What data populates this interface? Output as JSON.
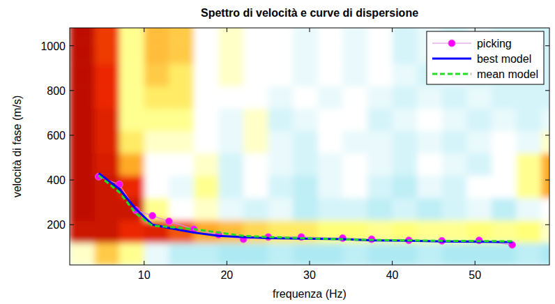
{
  "chart_data": {
    "type": "line",
    "title": "Spettro di velocità e curve di dispersione",
    "x_label": "frequenza (Hz)",
    "y_label": "velocità di fase (m/s)",
    "xlim": [
      1,
      59
    ],
    "ylim": [
      20,
      1080
    ],
    "xticks": [
      10,
      20,
      30,
      40,
      50
    ],
    "yticks": [
      200,
      400,
      600,
      800,
      1000
    ],
    "legend": "upper right",
    "x": [
      4.5,
      7,
      9,
      11,
      13,
      16,
      19,
      22,
      25,
      29,
      34,
      37.5,
      42,
      46,
      50.5,
      54.5
    ],
    "series": [
      {
        "name": "picking",
        "color": "#ff00ff",
        "marker": "circle",
        "line_style": "solid",
        "values": [
          415,
          380,
          265,
          240,
          215,
          180,
          155,
          135,
          145,
          145,
          140,
          135,
          130,
          128,
          130,
          110
        ]
      },
      {
        "name": "best model",
        "color": "#0000ff",
        "marker": "none",
        "line_style": "solid",
        "values": [
          430,
          360,
          270,
          200,
          185,
          165,
          150,
          145,
          140,
          138,
          135,
          130,
          128,
          125,
          124,
          122
        ]
      },
      {
        "name": "mean model",
        "color": "#22dd22",
        "marker": "none",
        "line_style": "dashed",
        "values": [
          420,
          345,
          250,
          195,
          190,
          180,
          165,
          150,
          145,
          140,
          135,
          132,
          130,
          128,
          127,
          126
        ]
      }
    ],
    "spectrum": {
      "type": "heatmap",
      "x": [
        2.5,
        5.5,
        8.5,
        11.5,
        14.5,
        17.5,
        20.5,
        23.5,
        26.5,
        29.5,
        32.5,
        35.5,
        38.5,
        41.5,
        44.5,
        47.5,
        50.5,
        53.5,
        56.5,
        59.5
      ],
      "y": [
        70,
        170,
        270,
        370,
        470,
        570,
        670,
        770,
        870,
        970,
        1070
      ],
      "zlim": [
        0,
        1
      ],
      "values": [
        [
          0.55,
          0.7,
          0.6,
          0.45,
          0.35,
          0.35,
          0.3,
          0.3,
          0.35,
          0.3,
          0.3,
          0.35,
          0.3,
          0.3,
          0.35,
          0.3,
          0.3,
          0.3,
          0.35,
          0.3
        ],
        [
          0.95,
          0.95,
          0.9,
          0.92,
          0.85,
          0.75,
          0.72,
          0.68,
          0.65,
          0.65,
          0.62,
          0.62,
          0.6,
          0.62,
          0.6,
          0.6,
          0.62,
          0.6,
          0.62,
          0.55
        ],
        [
          0.97,
          0.95,
          0.95,
          0.6,
          0.5,
          0.55,
          0.45,
          0.4,
          0.45,
          0.35,
          0.4,
          0.4,
          0.35,
          0.4,
          0.35,
          0.4,
          0.45,
          0.35,
          0.45,
          0.5
        ],
        [
          0.97,
          0.95,
          0.9,
          0.5,
          0.45,
          0.6,
          0.4,
          0.5,
          0.4,
          0.35,
          0.45,
          0.5,
          0.4,
          0.35,
          0.45,
          0.4,
          0.5,
          0.5,
          0.6,
          0.75
        ],
        [
          0.97,
          0.93,
          0.75,
          0.5,
          0.5,
          0.55,
          0.4,
          0.5,
          0.45,
          0.4,
          0.45,
          0.5,
          0.45,
          0.4,
          0.5,
          0.45,
          0.4,
          0.5,
          0.6,
          0.75
        ],
        [
          0.97,
          0.92,
          0.65,
          0.55,
          0.55,
          0.5,
          0.45,
          0.55,
          0.45,
          0.4,
          0.5,
          0.45,
          0.45,
          0.4,
          0.45,
          0.4,
          0.45,
          0.5,
          0.45,
          0.55
        ],
        [
          0.97,
          0.92,
          0.6,
          0.6,
          0.6,
          0.5,
          0.45,
          0.55,
          0.4,
          0.45,
          0.5,
          0.5,
          0.4,
          0.45,
          0.5,
          0.45,
          0.4,
          0.45,
          0.4,
          0.45
        ],
        [
          0.97,
          0.9,
          0.6,
          0.65,
          0.65,
          0.5,
          0.5,
          0.5,
          0.45,
          0.5,
          0.45,
          0.5,
          0.45,
          0.4,
          0.45,
          0.4,
          0.45,
          0.4,
          0.4,
          0.4
        ],
        [
          0.97,
          0.9,
          0.6,
          0.7,
          0.65,
          0.5,
          0.55,
          0.5,
          0.5,
          0.45,
          0.5,
          0.45,
          0.5,
          0.45,
          0.4,
          0.45,
          0.4,
          0.4,
          0.4,
          0.4
        ],
        [
          0.97,
          0.88,
          0.6,
          0.72,
          0.7,
          0.5,
          0.55,
          0.5,
          0.5,
          0.45,
          0.5,
          0.45,
          0.5,
          0.4,
          0.45,
          0.4,
          0.45,
          0.4,
          0.4,
          0.4
        ],
        [
          0.97,
          0.88,
          0.6,
          0.72,
          0.7,
          0.5,
          0.55,
          0.5,
          0.5,
          0.45,
          0.5,
          0.45,
          0.5,
          0.4,
          0.45,
          0.4,
          0.45,
          0.4,
          0.4,
          0.4
        ]
      ]
    }
  }
}
